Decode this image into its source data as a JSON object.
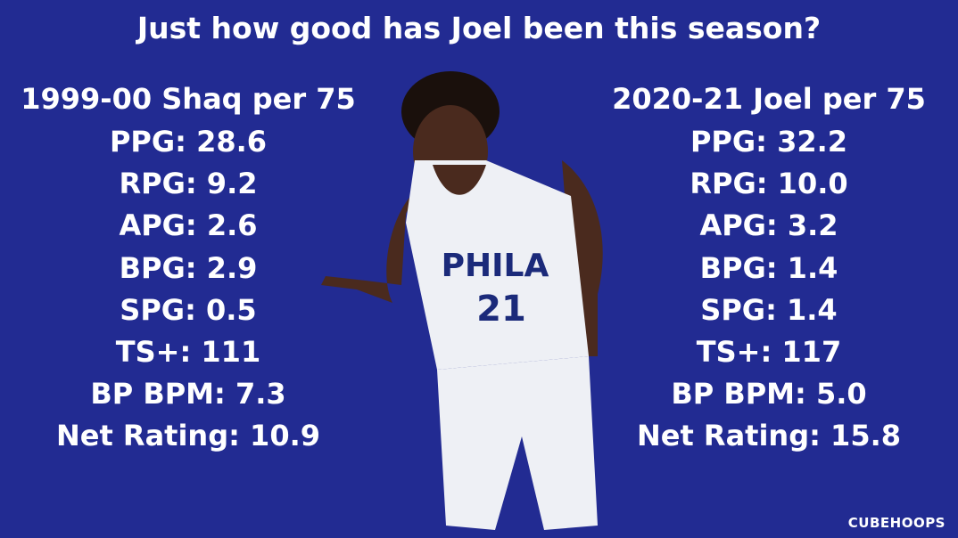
{
  "title": "Just how good has Joel been this season?",
  "left": {
    "heading": "1999-00 Shaq per 75",
    "stats": [
      "PPG: 28.6",
      "RPG: 9.2",
      "APG: 2.6",
      "BPG: 2.9",
      "SPG: 0.5",
      "TS+: 111",
      "BP BPM: 7.3",
      "Net Rating: 10.9"
    ]
  },
  "right": {
    "heading": "2020-21 Joel per 75",
    "stats": [
      "PPG: 32.2",
      "RPG: 10.0",
      "APG: 3.2",
      "BPG: 1.4",
      "SPG: 1.4",
      "TS+: 117",
      "BP BPM: 5.0",
      "Net Rating: 15.8"
    ]
  },
  "jersey": {
    "team": "PHILA",
    "number": "21"
  },
  "watermark": "CUBEHOOPS"
}
